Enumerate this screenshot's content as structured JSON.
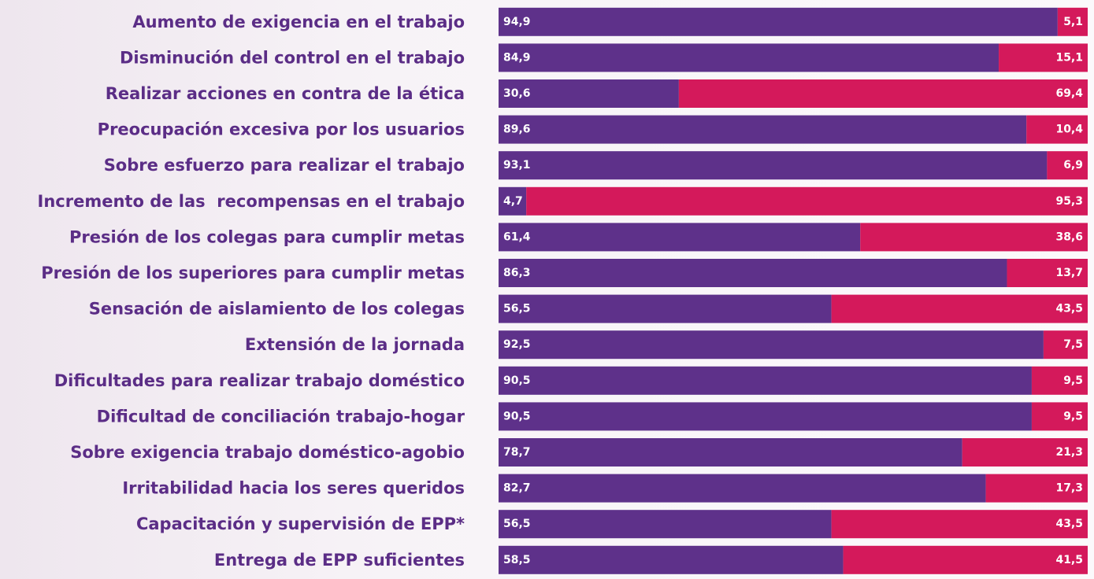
{
  "chart_data": {
    "type": "stacked_bar",
    "orientation": "horizontal",
    "categories": [
      "Aumento de exigencia en el trabajo",
      "Disminución del control en el trabajo",
      "Realizar acciones en contra de la ética",
      "Preocupación excesiva por los usuarios",
      "Sobre esfuerzo para realizar el trabajo",
      "Incremento de las  recompensas en el trabajo",
      "Presión de los colegas para cumplir metas",
      "Presión de los superiores para cumplir metas",
      "Sensación de aislamiento de los colegas",
      "Extensión de la jornada",
      "Dificultades para realizar trabajo doméstico",
      "Dificultad de conciliación trabajo-hogar",
      "Sobre exigencia trabajo doméstico-agobio",
      "Irritabilidad hacia los seres queridos",
      "Capacitación y supervisión de EPP*",
      "Entrega de EPP suficientes"
    ],
    "series": [
      {
        "color": "#5e318a",
        "values": [
          94.9,
          84.9,
          30.6,
          89.6,
          93.1,
          4.7,
          61.4,
          86.3,
          56.5,
          92.5,
          90.5,
          90.5,
          78.7,
          82.7,
          56.5,
          58.5
        ],
        "value_labels": [
          "94,9",
          "84,9",
          "30,6",
          "89,6",
          "93,1",
          "4,7",
          "61,4",
          "86,3",
          "56,5",
          "92,5",
          "90,5",
          "90,5",
          "78,7",
          "82,7",
          "56,5",
          "58,5"
        ]
      },
      {
        "color": "#d4195b",
        "values": [
          5.1,
          15.1,
          69.4,
          10.4,
          6.9,
          95.3,
          38.6,
          13.7,
          43.5,
          7.5,
          9.5,
          9.5,
          21.3,
          17.3,
          43.5,
          41.5
        ],
        "value_labels": [
          "5,1",
          "15,1",
          "69,4",
          "10,4",
          "6,9",
          "95,3",
          "38,6",
          "13,7",
          "43,5",
          "7,5",
          "9,5",
          "9,5",
          "21,3",
          "17,3",
          "43,5",
          "41,5"
        ]
      }
    ],
    "xlim": [
      0,
      100
    ]
  }
}
